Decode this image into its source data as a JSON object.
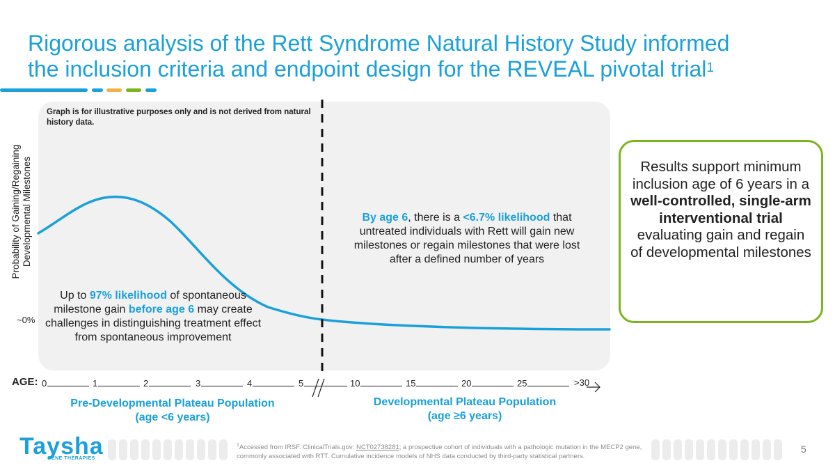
{
  "title": {
    "line1": "Rigorous analysis of the Rett Syndrome Natural History Study informed",
    "line2": "the inclusion criteria and endpoint design for the REVEAL pivotal trial",
    "superscript": "1"
  },
  "colors": {
    "brand_blue": "#1aa0da",
    "accent_green": "#7ab51d",
    "accent_yellow": "#f0b24a",
    "panel_gray": "#f1f1f1",
    "text_dark": "#222222"
  },
  "chart": {
    "disclaimer": "Graph is for illustrative purposes only and is not derived from natural history data.",
    "y_label": "Probability of Gaining/Regaining Developmental Milestones",
    "y_tick_label": "~0%",
    "x_axis_label": "AGE:",
    "x_tick_labels": [
      "0",
      "1",
      "2",
      "3",
      "4",
      "5",
      "10",
      "15",
      "20",
      "25",
      ">30"
    ],
    "left_note": {
      "p1": "Up to ",
      "h1": "97% likelihood",
      "p2": " of spontaneous milestone gain ",
      "h2": "before age 6",
      "p3": " may create challenges in distinguishing treatment effect from spontaneous improvement"
    },
    "right_note": {
      "h1": "By age 6",
      "p1": ", there is a ",
      "h2": "<6.7% likelihood",
      "p2": " that untreated individuals with Rett will gain new milestones or regain milestones that were lost after a defined number of years"
    },
    "left_population": {
      "name": "Pre-Developmental Plateau Population",
      "range": "(age <6 years)"
    },
    "right_population": {
      "name": "Developmental Plateau Population",
      "range": "(age ≥6 years)"
    }
  },
  "callout": {
    "p1": "Results support minimum inclusion age of 6 years in a ",
    "b1": "well-controlled, single-arm interventional trial",
    "p2": " evaluating gain and regain of developmental milestones"
  },
  "footer": {
    "logo_word": "Taysha",
    "logo_sub": "GENE THERAPIES",
    "footnote_sup": "1",
    "footnote_p1": "Accessed from IRSF. ClinicalTrials.gov: ",
    "footnote_link": "NCT02738281",
    "footnote_p2": "; a prospective cohort of individuals with a pathologic mutation in the MECP2 gene, commonly associated with RTT. Cumulative incidence models of NHS data conducted by third-party statistical partners.",
    "page_number": "5"
  }
}
